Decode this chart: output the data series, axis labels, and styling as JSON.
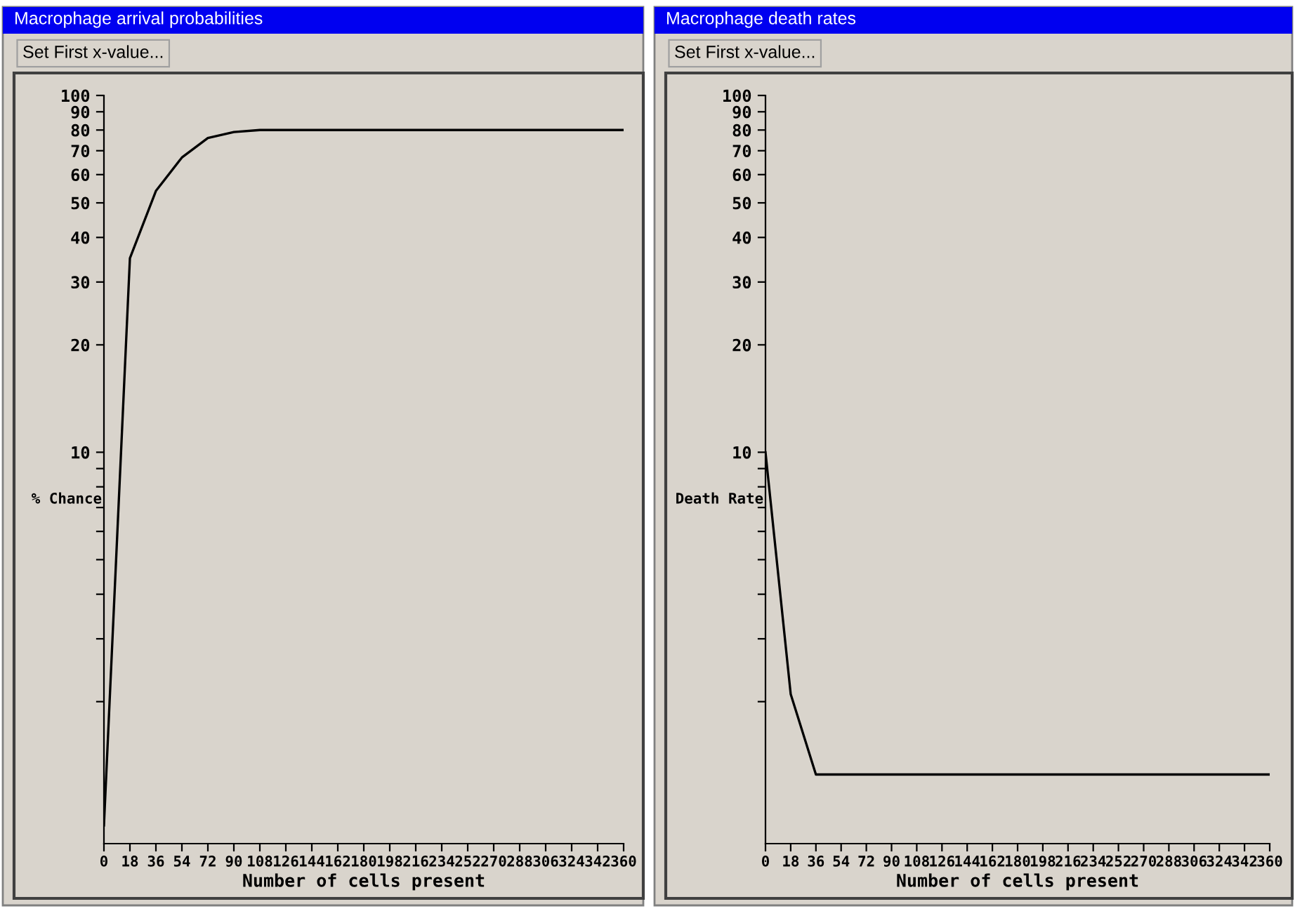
{
  "chart_data": [
    {
      "type": "line",
      "title": "Macrophage arrival probabilities",
      "annotations": [
        "Set First x-value..."
      ],
      "xlabel": "Number of cells present",
      "ylabel": "% Chance",
      "log": "y",
      "xlim": [
        0,
        360
      ],
      "xticks": [
        0,
        18,
        36,
        54,
        72,
        90,
        108,
        126,
        144,
        162,
        180,
        198,
        216,
        234,
        252,
        270,
        288,
        306,
        324,
        342,
        360
      ],
      "ylim": [
        0.8,
        100
      ],
      "yticks": [
        {
          "value": 2,
          "label": null
        },
        {
          "value": 3,
          "label": null
        },
        {
          "value": 4,
          "label": null
        },
        {
          "value": 5,
          "label": null
        },
        {
          "value": 6,
          "label": null
        },
        {
          "value": 7,
          "label": null
        },
        {
          "value": 8,
          "label": null
        },
        {
          "value": 9,
          "label": null
        },
        10,
        20,
        30,
        40,
        50,
        60,
        70,
        80,
        90,
        100
      ],
      "grid": false,
      "marker": "none",
      "line_style": "solid",
      "series": [
        {
          "color": "#000000",
          "x": [
            0,
            18,
            36,
            54,
            72,
            90,
            108,
            360
          ],
          "values": [
            0.9,
            35,
            54,
            67,
            76,
            79,
            80,
            80
          ]
        }
      ]
    },
    {
      "type": "line",
      "title": "Macrophage death rates",
      "annotations": [
        "Set First x-value..."
      ],
      "xlabel": "Number of cells present",
      "ylabel": "Death Rate",
      "log": "y",
      "xlim": [
        0,
        360
      ],
      "xticks": [
        0,
        18,
        36,
        54,
        72,
        90,
        108,
        126,
        144,
        162,
        180,
        198,
        216,
        234,
        252,
        270,
        288,
        306,
        324,
        342,
        360
      ],
      "ylim": [
        0.8,
        100
      ],
      "yticks": [
        {
          "value": 2,
          "label": null
        },
        {
          "value": 3,
          "label": null
        },
        {
          "value": 4,
          "label": null
        },
        {
          "value": 5,
          "label": null
        },
        {
          "value": 6,
          "label": null
        },
        {
          "value": 7,
          "label": null
        },
        {
          "value": 8,
          "label": null
        },
        {
          "value": 9,
          "label": null
        },
        10,
        20,
        30,
        40,
        50,
        60,
        70,
        80,
        90,
        100
      ],
      "grid": false,
      "marker": "none",
      "line_style": "solid",
      "series": [
        {
          "color": "#000000",
          "x": [
            0,
            18,
            36,
            360
          ],
          "values": [
            10,
            2.1,
            1.25,
            1.25
          ]
        }
      ]
    }
  ]
}
